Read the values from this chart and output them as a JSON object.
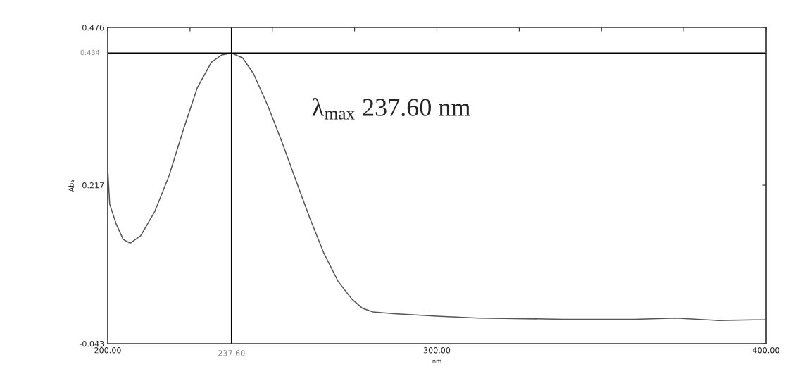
{
  "chart_data": {
    "type": "line",
    "xlabel": "nm",
    "ylabel": "Abs",
    "x": [
      200,
      200.6,
      202.6,
      204.7,
      206.8,
      210,
      214.3,
      218.6,
      222.9,
      227.2,
      231.5,
      234.7,
      237.6,
      241,
      244.3,
      248.6,
      252.8,
      257.1,
      261.4,
      265.7,
      270,
      274.2,
      277.4,
      280.6,
      287,
      299.9,
      312.7,
      338.4,
      359.8,
      372.6,
      385.5,
      396.2,
      400
    ],
    "series": [
      {
        "color": "#555555",
        "values": [
          0.244,
          0.186,
          0.153,
          0.128,
          0.122,
          0.134,
          0.174,
          0.232,
          0.307,
          0.377,
          0.419,
          0.431,
          0.434,
          0.426,
          0.4,
          0.348,
          0.29,
          0.226,
          0.163,
          0.105,
          0.059,
          0.03,
          0.015,
          0.009,
          0.006,
          0.002,
          -0.001,
          -0.003,
          -0.003,
          -0.001,
          -0.005,
          -0.004,
          -0.004
        ]
      }
    ],
    "xlim": [
      200,
      400
    ],
    "ylim": [
      -0.043,
      0.476
    ],
    "xticks": [
      {
        "value": 200,
        "label": "200.00"
      },
      {
        "value": 225,
        "label": null
      },
      {
        "value": 250,
        "label": null
      },
      {
        "value": 275,
        "label": null
      },
      {
        "value": 300,
        "label": "300.00"
      },
      {
        "value": 325,
        "label": null
      },
      {
        "value": 350,
        "label": null
      },
      {
        "value": 375,
        "label": null
      },
      {
        "value": 400,
        "label": "400.00"
      }
    ],
    "yticks": [
      -0.043,
      0.217,
      0.476
    ],
    "ref_lines": [
      {
        "axis": "x",
        "value": 237.6,
        "label": "237.60",
        "color": "#000000"
      },
      {
        "axis": "y",
        "value": 0.434,
        "label": "0.434",
        "color": "#000000"
      }
    ],
    "annotations": [
      "λ$_{max}$ 237.60 nm"
    ],
    "grid": false,
    "legend": false,
    "line_style": "solid",
    "marker": "none"
  }
}
